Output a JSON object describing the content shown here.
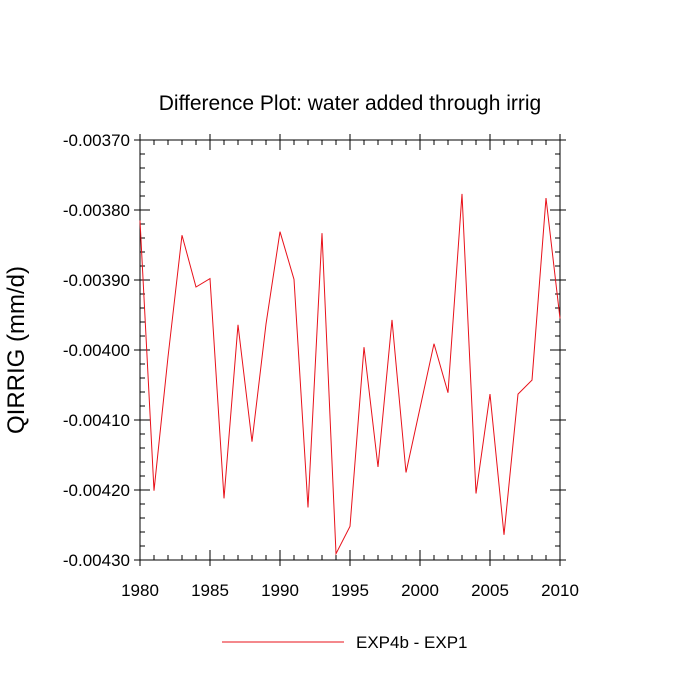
{
  "chart_data": {
    "type": "line",
    "title": "Difference Plot: water added through irrig",
    "xlabel": "",
    "ylabel": "QIRRIG  (mm/d)",
    "xlim": [
      1980,
      2010
    ],
    "ylim": [
      -0.0043,
      -0.0037
    ],
    "xticks": [
      1980,
      1985,
      1990,
      1995,
      2000,
      2005,
      2010
    ],
    "xtick_labels": [
      "1980",
      "1985",
      "1990",
      "1995",
      "2000",
      "2005",
      "2010"
    ],
    "yticks": [
      -0.0037,
      -0.0038,
      -0.0039,
      -0.004,
      -0.0041,
      -0.0042,
      -0.0043
    ],
    "ytick_labels": [
      "-0.00370",
      "-0.00380",
      "-0.00390",
      "-0.00400",
      "-0.00410",
      "-0.00420",
      "-0.00430"
    ],
    "grid": false,
    "legend_position": "bottom-center",
    "series": [
      {
        "name": "EXP4b - EXP1",
        "color": "#e8111a",
        "x": [
          1980,
          1981,
          1982,
          1983,
          1984,
          1985,
          1986,
          1987,
          1988,
          1989,
          1990,
          1991,
          1992,
          1993,
          1994,
          1995,
          1996,
          1997,
          1998,
          1999,
          2000,
          2001,
          2002,
          2003,
          2004,
          2005,
          2006,
          2007,
          2008,
          2009,
          2010
        ],
        "values": [
          -0.003815,
          -0.004201,
          -0.00401,
          -0.003836,
          -0.00391,
          -0.003898,
          -0.004212,
          -0.003964,
          -0.004131,
          -0.003963,
          -0.003831,
          -0.003899,
          -0.004225,
          -0.003833,
          -0.004291,
          -0.004252,
          -0.003996,
          -0.004167,
          -0.003957,
          -0.004175,
          -0.004083,
          -0.003991,
          -0.004061,
          -0.003777,
          -0.004205,
          -0.004063,
          -0.004264,
          -0.004063,
          -0.004043,
          -0.003783,
          -0.003955
        ]
      }
    ]
  }
}
